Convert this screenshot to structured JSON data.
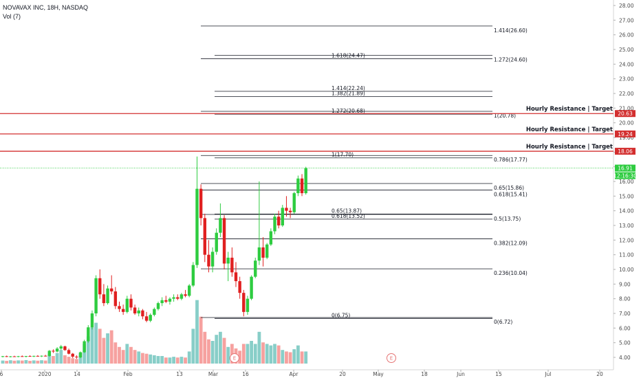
{
  "header": {
    "symbol": "NOVAVAX INC, 18H, NASDAQ",
    "volume": "Vol (7)"
  },
  "colors": {
    "up": "#26a69a",
    "down": "#ef5350",
    "upCandle": "#2ecc40",
    "downCandle": "#e02020",
    "resistance": "#d32f2f",
    "current": "#2ecc40",
    "fib": "#131722"
  },
  "chart_data": {
    "type": "candlestick",
    "symbol": "NOVAVAX INC",
    "interval": "18H",
    "exchange": "NASDAQ",
    "ylim": [
      3.5,
      28.5
    ],
    "y_ticks": [
      "4.00",
      "5.00",
      "6.00",
      "7.00",
      "8.00",
      "9.00",
      "10.00",
      "11.00",
      "12.00",
      "13.00",
      "14.00",
      "15.00",
      "16.00",
      "17.00",
      "18.00",
      "19.00",
      "20.00",
      "21.00",
      "22.00",
      "23.00",
      "24.00",
      "25.00",
      "26.00",
      "27.00",
      "28.00"
    ],
    "x_ticks": [
      "6",
      "2020",
      "14",
      "Feb",
      "13",
      "Mar",
      "16",
      "Apr",
      "20",
      "May",
      "18",
      "Jun",
      "15",
      "Jul",
      "20"
    ],
    "fib_levels": [
      {
        "label": "1.414(26.60)",
        "value": 26.6
      },
      {
        "label": "1.618(24.47)",
        "value": 24.47
      },
      {
        "label": "1.272(24.60)",
        "value": 24.6
      },
      {
        "label": "1.414(22.24)",
        "value": 22.24
      },
      {
        "label": "1.382(21.89)",
        "value": 21.89
      },
      {
        "label": "1.272(20.68)",
        "value": 20.68
      },
      {
        "label": "1(20.78)",
        "value": 20.78
      },
      {
        "label": "1(17.70)",
        "value": 17.7
      },
      {
        "label": "0.786(17.77)",
        "value": 17.77
      },
      {
        "label": "0.65(15.86)",
        "value": 15.86
      },
      {
        "label": "0.618(15.41)",
        "value": 15.41
      },
      {
        "label": "0.65(13.87)",
        "value": 13.87
      },
      {
        "label": "0.618(13.52)",
        "value": 13.52
      },
      {
        "label": "0.5(13.75)",
        "value": 13.75
      },
      {
        "label": "0.382(12.09)",
        "value": 12.09
      },
      {
        "label": "0.236(10.04)",
        "value": 10.04
      },
      {
        "label": "0(6.75)",
        "value": 6.75
      },
      {
        "label": "0(6.72)",
        "value": 6.72
      }
    ],
    "resistance": [
      {
        "label": "Hourly Resistance | Target",
        "value": 20.63,
        "badge": "20.63"
      },
      {
        "label": "Hourly Resistance | Target",
        "value": 19.24,
        "badge": "19.24"
      },
      {
        "label": "Hourly Resistance | Target",
        "value": 18.06,
        "badge": "18.06"
      }
    ],
    "last_price": {
      "value": 16.91,
      "badge": "16.91",
      "countdown": "12:16:30"
    },
    "events": [
      "E",
      "E"
    ],
    "candles": [
      [
        4.05,
        4.1,
        4.0,
        4.08
      ],
      [
        4.08,
        4.12,
        4.02,
        4.04
      ],
      [
        4.04,
        4.09,
        4.0,
        4.07
      ],
      [
        4.07,
        4.11,
        4.03,
        4.05
      ],
      [
        4.05,
        4.1,
        4.01,
        4.08
      ],
      [
        4.08,
        4.13,
        4.04,
        4.06
      ],
      [
        4.06,
        4.1,
        4.0,
        4.09
      ],
      [
        4.09,
        4.14,
        4.05,
        4.07
      ],
      [
        4.07,
        4.12,
        4.02,
        4.1
      ],
      [
        4.1,
        4.15,
        4.06,
        4.08
      ],
      [
        4.08,
        4.13,
        4.03,
        4.11
      ],
      [
        4.11,
        4.17,
        4.06,
        4.09
      ],
      [
        4.1,
        4.5,
        4.05,
        4.45
      ],
      [
        4.45,
        4.55,
        4.3,
        4.4
      ],
      [
        4.4,
        4.7,
        4.35,
        4.6
      ],
      [
        4.6,
        4.85,
        4.5,
        4.75
      ],
      [
        4.75,
        4.8,
        4.45,
        4.5
      ],
      [
        4.5,
        4.6,
        4.2,
        4.25
      ],
      [
        4.25,
        4.3,
        3.95,
        4.05
      ],
      [
        4.05,
        4.15,
        3.9,
        4.0
      ],
      [
        4.0,
        4.4,
        3.95,
        4.35
      ],
      [
        4.35,
        5.2,
        4.3,
        5.1
      ],
      [
        5.1,
        6.2,
        5.0,
        6.05
      ],
      [
        6.05,
        7.2,
        5.9,
        7.0
      ],
      [
        7.0,
        9.6,
        6.8,
        9.4
      ],
      [
        9.4,
        10.0,
        8.0,
        8.3
      ],
      [
        8.3,
        9.0,
        7.5,
        7.7
      ],
      [
        7.7,
        8.9,
        7.6,
        8.7
      ],
      [
        8.7,
        9.6,
        8.3,
        8.5
      ],
      [
        8.5,
        8.8,
        7.3,
        7.5
      ],
      [
        7.5,
        7.8,
        7.1,
        7.3
      ],
      [
        7.3,
        7.6,
        6.9,
        7.1
      ],
      [
        7.1,
        8.2,
        7.0,
        8.0
      ],
      [
        8.0,
        8.3,
        7.2,
        7.4
      ],
      [
        7.4,
        7.6,
        6.9,
        7.0
      ],
      [
        7.0,
        7.4,
        6.8,
        7.2
      ],
      [
        7.2,
        7.3,
        6.6,
        6.8
      ],
      [
        6.8,
        7.1,
        6.4,
        6.5
      ],
      [
        6.5,
        7.0,
        6.4,
        6.9
      ],
      [
        6.9,
        7.4,
        6.8,
        7.3
      ],
      [
        7.3,
        7.8,
        7.2,
        7.7
      ],
      [
        7.7,
        8.1,
        7.5,
        7.9
      ],
      [
        7.9,
        8.2,
        7.7,
        7.8
      ],
      [
        7.8,
        8.1,
        7.6,
        8.0
      ],
      [
        8.0,
        8.3,
        7.8,
        8.1
      ],
      [
        8.1,
        8.3,
        7.9,
        8.0
      ],
      [
        8.0,
        8.4,
        7.9,
        8.3
      ],
      [
        8.3,
        8.6,
        8.1,
        8.2
      ],
      [
        8.2,
        9.0,
        8.1,
        8.9
      ],
      [
        8.9,
        10.5,
        8.8,
        10.3
      ],
      [
        10.3,
        17.7,
        10.1,
        15.5
      ],
      [
        15.5,
        15.8,
        13.0,
        13.5
      ],
      [
        13.5,
        13.8,
        10.5,
        11.0
      ],
      [
        11.0,
        12.0,
        9.8,
        10.2
      ],
      [
        10.2,
        11.5,
        9.8,
        11.2
      ],
      [
        11.2,
        12.8,
        11.0,
        12.5
      ],
      [
        12.5,
        14.5,
        12.2,
        13.5
      ],
      [
        13.5,
        13.7,
        10.0,
        10.4
      ],
      [
        10.4,
        11.2,
        9.2,
        10.8
      ],
      [
        10.8,
        11.5,
        9.5,
        9.8
      ],
      [
        9.8,
        10.5,
        8.8,
        9.2
      ],
      [
        9.2,
        9.5,
        8.0,
        8.4
      ],
      [
        8.4,
        8.6,
        6.8,
        7.1
      ],
      [
        7.1,
        8.2,
        6.9,
        8.0
      ],
      [
        8.0,
        9.6,
        7.9,
        9.5
      ],
      [
        9.5,
        10.8,
        9.4,
        10.6
      ],
      [
        10.6,
        16.0,
        10.3,
        11.5
      ],
      [
        11.5,
        12.2,
        10.2,
        10.8
      ],
      [
        10.8,
        11.8,
        10.7,
        11.7
      ],
      [
        11.7,
        12.8,
        11.6,
        12.6
      ],
      [
        12.6,
        13.8,
        12.4,
        13.6
      ],
      [
        13.6,
        14.0,
        12.8,
        13.0
      ],
      [
        13.0,
        14.4,
        12.9,
        14.2
      ],
      [
        14.2,
        15.0,
        13.6,
        14.0
      ],
      [
        14.0,
        14.2,
        13.5,
        13.9
      ],
      [
        13.9,
        15.3,
        13.8,
        15.2
      ],
      [
        15.2,
        16.4,
        15.0,
        16.2
      ],
      [
        16.2,
        16.5,
        15.0,
        15.2
      ],
      [
        15.2,
        17.0,
        15.1,
        16.9
      ]
    ],
    "volumes": [
      0.2,
      0.18,
      0.22,
      0.19,
      0.21,
      0.2,
      0.23,
      0.18,
      0.21,
      0.19,
      0.22,
      0.2,
      0.6,
      0.5,
      0.7,
      0.9,
      0.55,
      0.45,
      0.35,
      0.3,
      0.7,
      1.3,
      1.8,
      2.4,
      2.7,
      2.3,
      1.7,
      2.0,
      2.2,
      1.4,
      1.1,
      0.9,
      1.3,
      1.1,
      0.9,
      0.8,
      0.7,
      0.65,
      0.6,
      0.55,
      0.5,
      0.5,
      0.4,
      0.4,
      0.45,
      0.4,
      0.45,
      0.4,
      0.8,
      2.3,
      4.2,
      3.1,
      2.1,
      1.6,
      1.5,
      1.9,
      2.1,
      1.7,
      1.1,
      1.3,
      1.0,
      0.85,
      1.3,
      1.3,
      1.5,
      1.3,
      2.1,
      1.4,
      1.3,
      1.2,
      1.3,
      1.2,
      0.9,
      0.8,
      0.75,
      0.95,
      1.2,
      0.8,
      0.8
    ]
  }
}
